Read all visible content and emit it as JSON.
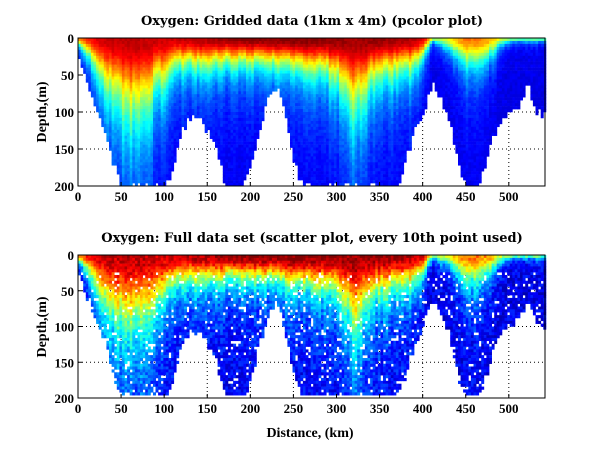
{
  "chart_data": [
    {
      "type": "heatmap",
      "title": "Oxygen: Gridded data (1km x 4m) (pcolor plot)",
      "xlabel": "",
      "ylabel": "Depth,(m)",
      "xlim": [
        0,
        542
      ],
      "ylim": [
        200,
        0
      ],
      "xticks": [
        0,
        50,
        100,
        150,
        200,
        250,
        300,
        350,
        400,
        450,
        500
      ],
      "yticks": [
        0,
        50,
        100,
        150,
        200
      ],
      "grid": true,
      "colormap": "jet",
      "style": "pcolor"
    },
    {
      "type": "scatter",
      "title": "Oxygen: Full data set (scatter plot, every 10th point used)",
      "xlabel": "Distance, (km)",
      "ylabel": "Depth,(m)",
      "xlim": [
        0,
        542
      ],
      "ylim": [
        200,
        0
      ],
      "xticks": [
        0,
        50,
        100,
        150,
        200,
        250,
        300,
        350,
        400,
        450,
        500
      ],
      "yticks": [
        0,
        50,
        100,
        150,
        200
      ],
      "grid": true,
      "colormap": "jet",
      "style": "scatter"
    }
  ],
  "section": {
    "distance_km": [
      0,
      10,
      20,
      30,
      40,
      50,
      60,
      70,
      80,
      90,
      100,
      110,
      120,
      130,
      140,
      150,
      160,
      170,
      180,
      190,
      200,
      210,
      220,
      230,
      240,
      250,
      260,
      270,
      280,
      290,
      300,
      310,
      320,
      330,
      340,
      350,
      360,
      370,
      380,
      390,
      400,
      410,
      420,
      430,
      440,
      450,
      460,
      470,
      480,
      490,
      500,
      510,
      520,
      530,
      540
    ],
    "bottom_depth_m": [
      25,
      60,
      90,
      120,
      170,
      200,
      200,
      200,
      200,
      200,
      200,
      170,
      120,
      105,
      110,
      125,
      150,
      200,
      200,
      200,
      170,
      120,
      80,
      60,
      110,
      170,
      200,
      200,
      200,
      200,
      200,
      200,
      200,
      200,
      200,
      200,
      200,
      200,
      160,
      120,
      100,
      60,
      80,
      110,
      170,
      200,
      200,
      180,
      130,
      110,
      95,
      90,
      60,
      95,
      100
    ],
    "oxycline_depth_m": [
      10,
      20,
      40,
      60,
      75,
      85,
      90,
      90,
      80,
      60,
      50,
      40,
      35,
      35,
      35,
      35,
      32,
      30,
      30,
      30,
      30,
      30,
      30,
      32,
      35,
      35,
      35,
      38,
      40,
      45,
      50,
      65,
      85,
      70,
      50,
      45,
      45,
      40,
      40,
      35,
      20,
      5,
      10,
      15,
      25,
      35,
      35,
      30,
      20,
      10,
      5,
      5,
      5,
      5,
      5
    ],
    "surface_value": [
      0.75,
      0.85,
      0.9,
      0.92,
      0.93,
      0.93,
      0.94,
      0.94,
      0.93,
      0.93,
      0.92,
      0.92,
      0.93,
      0.94,
      0.95,
      0.95,
      0.96,
      0.97,
      0.98,
      0.98,
      0.99,
      0.99,
      0.99,
      0.99,
      1.0,
      1.0,
      1.0,
      0.99,
      0.99,
      0.98,
      0.98,
      0.97,
      0.96,
      0.97,
      0.98,
      0.98,
      0.97,
      0.96,
      0.96,
      0.94,
      0.9,
      0.55,
      0.55,
      0.62,
      0.72,
      0.76,
      0.76,
      0.74,
      0.68,
      0.58,
      0.52,
      0.5,
      0.5,
      0.5,
      0.5
    ]
  }
}
